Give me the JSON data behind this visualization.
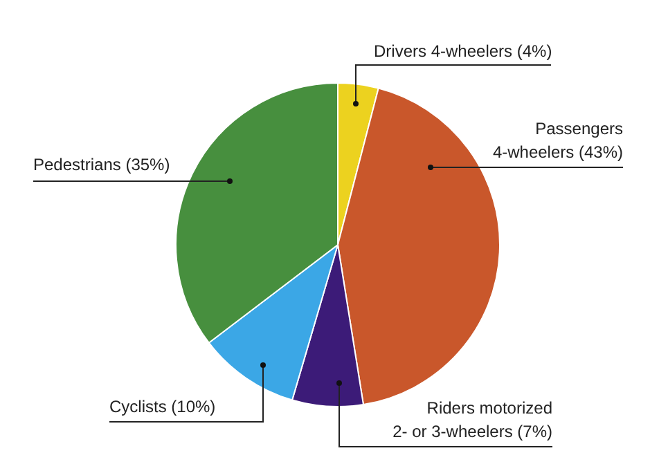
{
  "chart_data": {
    "type": "pie",
    "categories": [
      "Drivers 4-wheelers (4%)",
      "Passengers\n4-wheelers (43%)",
      "Riders motorized\n2- or 3-wheelers (7%)",
      "Cyclists (10%)",
      "Pedestrians (35%)"
    ],
    "values": [
      4,
      43,
      7,
      10,
      35
    ],
    "colors": [
      "#ecd21f",
      "#c9572b",
      "#3c1b78",
      "#3ba7e6",
      "#478f3e"
    ]
  }
}
